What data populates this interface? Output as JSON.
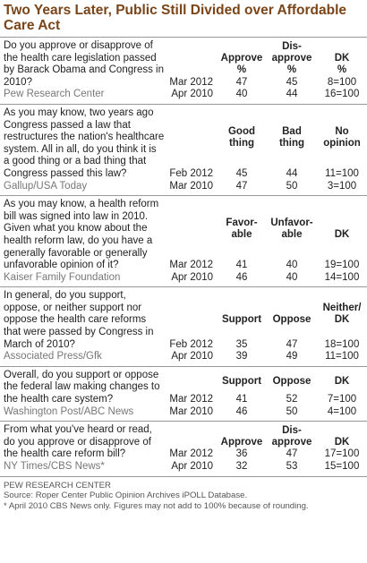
{
  "title": "Two Years Later, Public Still Divided over Affordable Care Act",
  "sections": [
    {
      "question": "Do you approve or disapprove of the health care legislation passed by Barack Obama and Congress in 2010?",
      "columns": [
        "Approve\n%",
        "Dis-\napprove\n%",
        "DK\n%"
      ],
      "source": "Pew Research Center",
      "rows": [
        {
          "date": "Mar 2012",
          "values": [
            47,
            45,
            "8=100"
          ]
        },
        {
          "date": "Apr 2010",
          "values": [
            40,
            44,
            "16=100"
          ]
        }
      ]
    },
    {
      "question": "As you may know, two years ago  Congress passed a law that restructures the nation's healthcare system. All in all, do you think it is a good thing or a bad thing that Congress passed this law?",
      "columns": [
        "Good\nthing",
        "Bad\nthing",
        "No\nopinion"
      ],
      "source": "Gallup/USA Today",
      "rows": [
        {
          "date": "Feb 2012",
          "values": [
            45,
            44,
            "11=100"
          ]
        },
        {
          "date": "Mar 2010",
          "values": [
            47,
            50,
            "3=100"
          ]
        }
      ]
    },
    {
      "question": "As you may know, a health reform bill was signed into law in 2010. Given what you know about the health reform law, do you have a generally favorable or generally unfavorable opinion of it?",
      "columns": [
        "Favor-\nable",
        "Unfavor-\nable",
        "DK"
      ],
      "source": "Kaiser Family Foundation",
      "rows": [
        {
          "date": "Mar 2012",
          "values": [
            41,
            40,
            "19=100"
          ]
        },
        {
          "date": "Apr 2010",
          "values": [
            46,
            40,
            "14=100"
          ]
        }
      ]
    },
    {
      "question": "In general, do you support, oppose, or neither support nor oppose the health care reforms that were passed by Congress in March of 2010?",
      "columns": [
        "Support",
        "Oppose",
        "Neither/\nDK"
      ],
      "source": "Associated Press/Gfk",
      "rows": [
        {
          "date": "Feb 2012",
          "values": [
            35,
            47,
            "18=100"
          ]
        },
        {
          "date": "Apr 2010",
          "values": [
            39,
            49,
            "11=100"
          ]
        }
      ]
    },
    {
      "question": "Overall, do you support or oppose the federal law making changes to the health care system?",
      "columns": [
        "Support",
        "Oppose",
        "DK"
      ],
      "source": "Washington Post/ABC News",
      "rows": [
        {
          "date": "Mar 2012",
          "values": [
            41,
            52,
            "7=100"
          ]
        },
        {
          "date": "Mar 2010",
          "values": [
            46,
            50,
            "4=100"
          ]
        }
      ]
    },
    {
      "question": "From what you've heard or read, do you approve or disapprove of the health care reform bill?",
      "columns": [
        "Approve",
        "Dis-\napprove",
        "DK"
      ],
      "source": "NY Times/CBS News*",
      "rows": [
        {
          "date": "Mar 2012",
          "values": [
            36,
            47,
            "17=100"
          ]
        },
        {
          "date": "Apr 2010",
          "values": [
            32,
            53,
            "15=100"
          ]
        }
      ]
    }
  ],
  "footer": [
    "PEW RESEARCH CENTER",
    "Source: Roper Center Public Opinion Archives iPOLL Database.",
    "* April 2010 CBS News only. Figures may not add to 100% because of rounding."
  ]
}
